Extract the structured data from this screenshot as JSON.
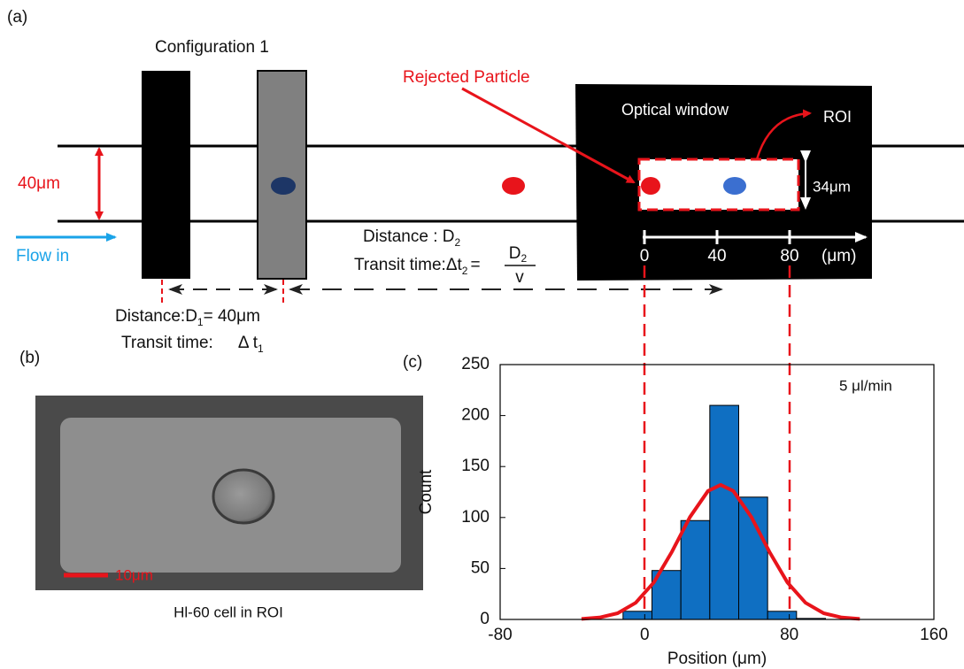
{
  "panel_a": {
    "label": "(a)",
    "configuration": "Configuration 1",
    "rejected": "Rejected Particle",
    "optical_window": "Optical window",
    "roi": "ROI",
    "channel_width": "40μm",
    "roi_height": "34μm",
    "flow": "Flow in",
    "distance2": {
      "text": "Distance : D",
      "sub": "2"
    },
    "transit2": {
      "text": "Transit time:Δt",
      "sub": "2",
      "eq": "=",
      "num": "D",
      "num_sub": "2",
      "den": "v"
    },
    "scale": {
      "ticks": [
        "0",
        "40",
        "80"
      ],
      "unit": "(μm)"
    },
    "distance1": {
      "text": "Distance:D",
      "sub": "1",
      "rest": "= 40μm"
    },
    "transit1": {
      "text": "Transit time:",
      "delta": "Δ t",
      "sub": "1"
    }
  },
  "panel_b": {
    "label": "(b)",
    "scale_bar": "10μm",
    "caption": "Hl-60 cell in ROI"
  },
  "chart_data": {
    "type": "histogram",
    "label": "(c)",
    "annotation": "5 μl/min",
    "x_label": "Position (μm)",
    "y_label": "Count",
    "bins": [
      -12,
      4,
      20,
      36,
      52,
      68,
      84,
      100
    ],
    "counts": [
      8,
      48,
      97,
      210,
      120,
      8,
      1
    ],
    "color": "#0f6fc2",
    "edgecolor": "#000000",
    "fit": {
      "color": "#e8141b",
      "x": [
        -35,
        -25,
        -15,
        -5,
        5,
        15,
        25,
        35,
        42,
        49,
        59,
        69,
        79,
        89,
        99,
        109,
        119
      ],
      "values": [
        0.5,
        1.9,
        6.1,
        16.3,
        36.2,
        66.3,
        100.4,
        126,
        132,
        126,
        100.4,
        66.3,
        36.2,
        16.3,
        6.1,
        1.9,
        0.5
      ]
    },
    "xlim": [
      -80,
      160
    ],
    "xticks": [
      -80,
      0,
      80,
      160
    ],
    "ylim": [
      0,
      250
    ],
    "yticks": [
      0,
      50,
      100,
      150,
      200,
      250
    ]
  }
}
